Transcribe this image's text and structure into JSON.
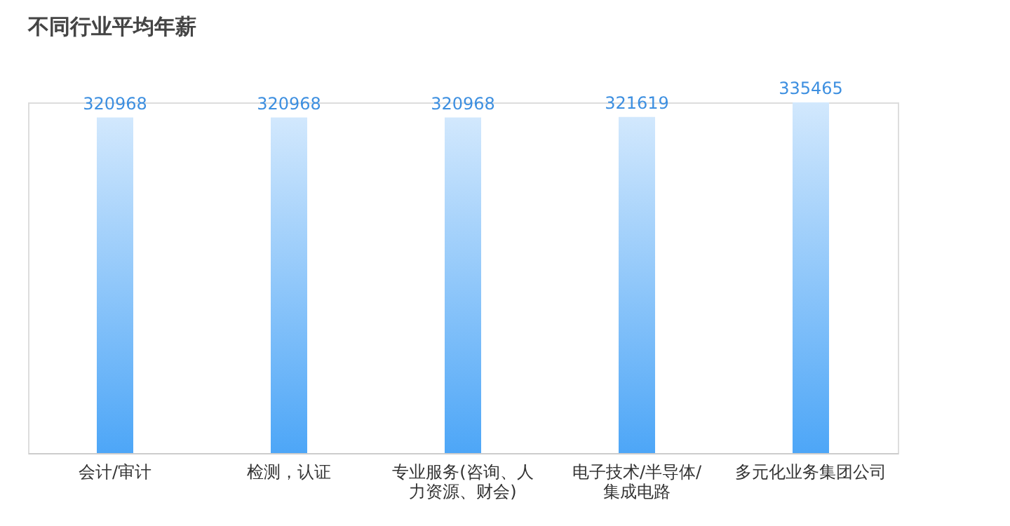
{
  "chart_data": {
    "type": "bar",
    "title": "不同行业平均年薪",
    "categories": [
      "会计/审计",
      "检测，认证",
      "专业服务(咨询、人力资源、财会)",
      "电子技术/半导体/集成电路",
      "多元化业务集团公司"
    ],
    "values": [
      320968,
      320968,
      320968,
      321619,
      335465
    ],
    "color": "#4da6f7",
    "data_labels": true
  }
}
